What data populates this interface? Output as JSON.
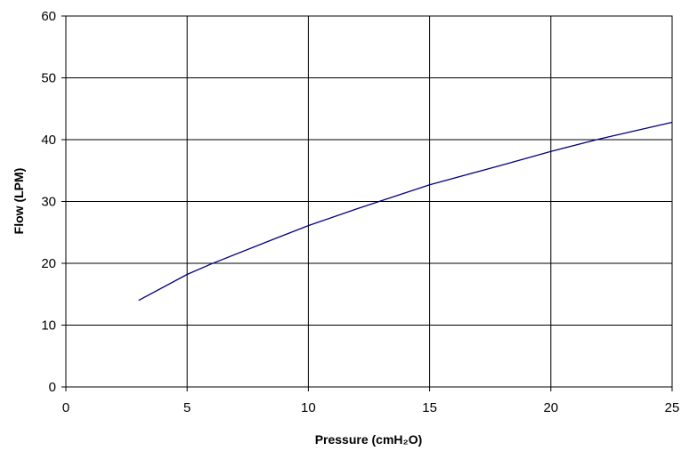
{
  "chart_data": {
    "type": "line",
    "title": "",
    "xlabel": "Pressure (cmH₂O)",
    "ylabel": "Flow (LPM)",
    "xlim": [
      0,
      25
    ],
    "ylim": [
      0,
      60
    ],
    "x_ticks": [
      "0",
      "5",
      "10",
      "15",
      "20",
      "25"
    ],
    "y_ticks": [
      "0",
      "10",
      "20",
      "30",
      "40",
      "50",
      "60"
    ],
    "grid": true,
    "legend": "none",
    "series": [
      {
        "color": "#000080",
        "x": [
          3,
          5,
          6,
          8.5,
          10,
          12,
          15,
          18,
          20,
          22,
          25
        ],
        "y": [
          14,
          18.2,
          19.9,
          23.8,
          26.1,
          28.8,
          32.7,
          35.9,
          38.1,
          40.1,
          42.8
        ]
      }
    ]
  }
}
